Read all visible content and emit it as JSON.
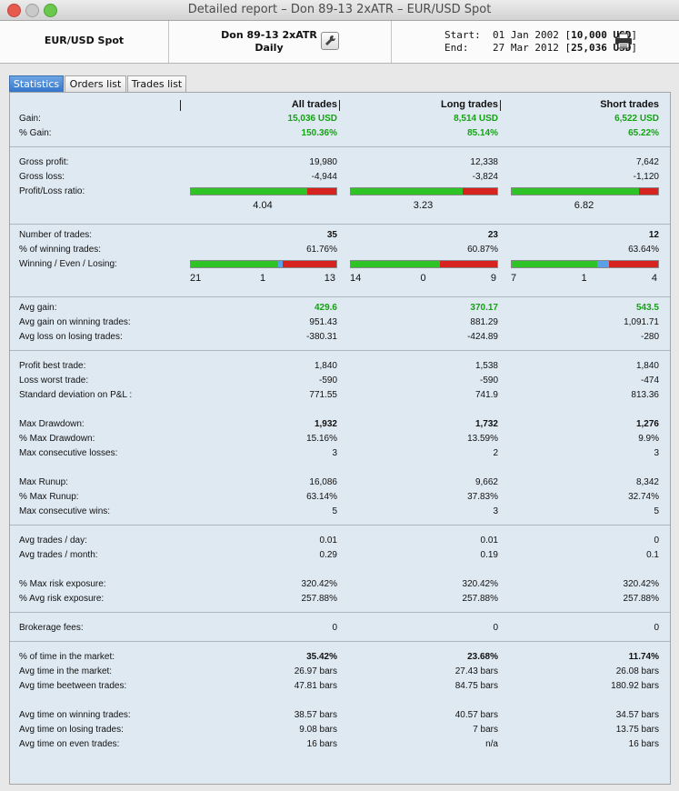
{
  "window": {
    "title": "Detailed report – Don 89-13 2xATR – EUR/USD Spot"
  },
  "header": {
    "symbol": "EUR/USD Spot",
    "strategy": "Don 89-13 2xATR",
    "period": "Daily",
    "start_label": "Start:",
    "start_date": "01 Jan 2002",
    "start_capital": "10,000 USD",
    "end_label": "End:",
    "end_date": "27 Mar 2012",
    "end_capital": "25,036 USD",
    "settings_icon": "wrench-icon",
    "print_icon": "printer-icon"
  },
  "tabs": [
    {
      "label": "Statistics",
      "active": true
    },
    {
      "label": "Orders list",
      "active": false
    },
    {
      "label": "Trades list",
      "active": false
    }
  ],
  "columns": [
    "All trades",
    "Long trades",
    "Short trades"
  ],
  "colors": {
    "positive": "#13a313",
    "win": "#2fc425",
    "even": "#5ba1e8",
    "loss": "#d6231f",
    "tab_active": "#2f72c9"
  },
  "rows": {
    "gain": {
      "label": "Gain:",
      "all": "15,036 USD",
      "long": "8,514 USD",
      "short": "6,522 USD"
    },
    "pct_gain": {
      "label": "% Gain:",
      "all": "150.36%",
      "long": "85.14%",
      "short": "65.22%"
    },
    "gross_profit": {
      "label": "Gross profit:",
      "all": "19,980",
      "long": "12,338",
      "short": "7,642"
    },
    "gross_loss": {
      "label": "Gross loss:",
      "all": "-4,944",
      "long": "-3,824",
      "short": "-1,120"
    },
    "pl_ratio": {
      "label": "Profit/Loss ratio:",
      "all": "4.04",
      "long": "3.23",
      "short": "6.82"
    },
    "num_trades": {
      "label": "Number of trades:",
      "all": "35",
      "long": "23",
      "short": "12"
    },
    "pct_winning": {
      "label": "% of winning trades:",
      "all": "61.76%",
      "long": "60.87%",
      "short": "63.64%"
    },
    "wel": {
      "label": "Winning / Even / Losing:",
      "all": {
        "win": "21",
        "even": "1",
        "loss": "13"
      },
      "long": {
        "win": "14",
        "even": "0",
        "loss": "9"
      },
      "short": {
        "win": "7",
        "even": "1",
        "loss": "4"
      }
    },
    "avg_gain": {
      "label": "Avg gain:",
      "all": "429.6",
      "long": "370.17",
      "short": "543.5"
    },
    "avg_gain_win": {
      "label": "Avg gain on winning trades:",
      "all": "951.43",
      "long": "881.29",
      "short": "1,091.71"
    },
    "avg_loss_lose": {
      "label": "Avg loss on losing trades:",
      "all": "-380.31",
      "long": "-424.89",
      "short": "-280"
    },
    "best_trade": {
      "label": "Profit best trade:",
      "all": "1,840",
      "long": "1,538",
      "short": "1,840"
    },
    "worst_trade": {
      "label": "Loss worst trade:",
      "all": "-590",
      "long": "-590",
      "short": "-474"
    },
    "std_dev": {
      "label": "Standard deviation on P&L :",
      "all": "771.55",
      "long": "741.9",
      "short": "813.36"
    },
    "max_dd": {
      "label": "Max Drawdown:",
      "all": "1,932",
      "long": "1,732",
      "short": "1,276"
    },
    "pct_max_dd": {
      "label": "% Max Drawdown:",
      "all": "15.16%",
      "long": "13.59%",
      "short": "9.9%"
    },
    "max_cons_losses": {
      "label": "Max consecutive losses:",
      "all": "3",
      "long": "2",
      "short": "3"
    },
    "max_runup": {
      "label": "Max Runup:",
      "all": "16,086",
      "long": "9,662",
      "short": "8,342"
    },
    "pct_max_runup": {
      "label": "% Max Runup:",
      "all": "63.14%",
      "long": "37.83%",
      "short": "32.74%"
    },
    "max_cons_wins": {
      "label": "Max consecutive wins:",
      "all": "5",
      "long": "3",
      "short": "5"
    },
    "avg_trades_day": {
      "label": "Avg trades / day:",
      "all": "0.01",
      "long": "0.01",
      "short": "0"
    },
    "avg_trades_month": {
      "label": "Avg trades / month:",
      "all": "0.29",
      "long": "0.19",
      "short": "0.1"
    },
    "max_risk": {
      "label": "% Max risk exposure:",
      "all": "320.42%",
      "long": "320.42%",
      "short": "320.42%"
    },
    "avg_risk": {
      "label": "% Avg risk exposure:",
      "all": "257.88%",
      "long": "257.88%",
      "short": "257.88%"
    },
    "brokerage": {
      "label": "Brokerage fees:",
      "all": "0",
      "long": "0",
      "short": "0"
    },
    "time_market_pct": {
      "label": "% of time in the market:",
      "all": "35.42%",
      "long": "23.68%",
      "short": "11.74%"
    },
    "avg_time_market": {
      "label": "Avg time in the market:",
      "all": "26.97 bars",
      "long": "27.43 bars",
      "short": "26.08 bars"
    },
    "avg_time_between": {
      "label": "Avg time beetween trades:",
      "all": "47.81 bars",
      "long": "84.75 bars",
      "short": "180.92 bars"
    },
    "avg_time_win": {
      "label": "Avg time on winning trades:",
      "all": "38.57 bars",
      "long": "40.57 bars",
      "short": "34.57 bars"
    },
    "avg_time_lose": {
      "label": "Avg time on losing trades:",
      "all": "9.08 bars",
      "long": "7 bars",
      "short": "13.75 bars"
    },
    "avg_time_even": {
      "label": "Avg time on even trades:",
      "all": "16 bars",
      "long": "n/a",
      "short": "16 bars"
    }
  }
}
